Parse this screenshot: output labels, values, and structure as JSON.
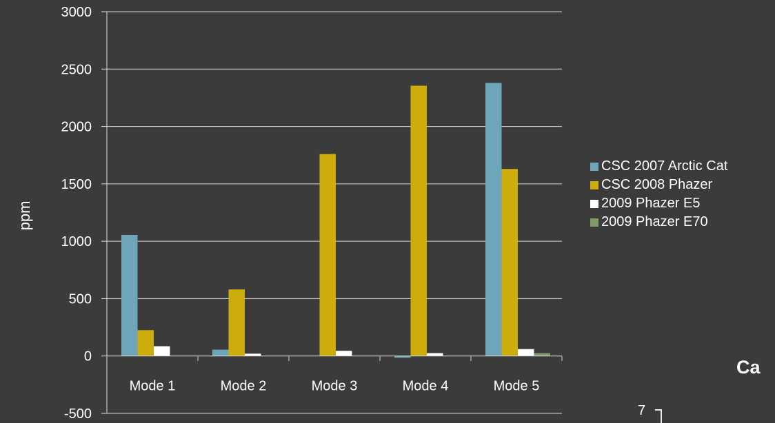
{
  "chart_data": {
    "type": "bar",
    "title": "",
    "xlabel": "",
    "ylabel": "ppm",
    "ylim": [
      -500,
      3000
    ],
    "yticks": [
      3000,
      2500,
      2000,
      1500,
      1000,
      500,
      0,
      -500
    ],
    "grid": true,
    "legend_position": "right",
    "categories": [
      "Mode 1",
      "Mode 2",
      "Mode 3",
      "Mode 4",
      "Mode 5"
    ],
    "series": [
      {
        "name": "CSC 2007 Arctic Cat",
        "color": "#6ea5b8",
        "values": [
          1055,
          55,
          0,
          -15,
          2380
        ]
      },
      {
        "name": "CSC 2008 Phazer",
        "color": "#ccad0c",
        "values": [
          225,
          580,
          1760,
          2355,
          1630
        ]
      },
      {
        "name": "2009 Phazer E5",
        "color": "#ffffff",
        "values": [
          85,
          20,
          45,
          25,
          60
        ]
      },
      {
        "name": "2009 Phazer E70",
        "color": "#7f9a6a",
        "values": [
          0,
          0,
          0,
          0,
          25
        ]
      }
    ]
  },
  "second_chart_fragment": {
    "title_fragment": "Ca",
    "tick_label": "7"
  }
}
